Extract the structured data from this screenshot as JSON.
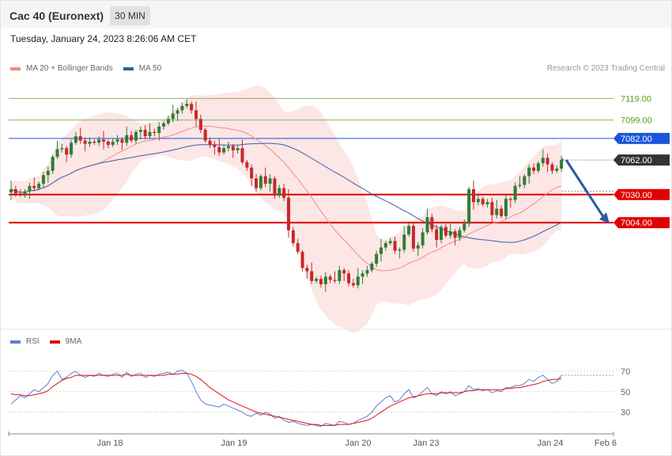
{
  "header": {
    "title": "Cac 40 (Euronext)",
    "interval": "30 MIN"
  },
  "datetime": "Tuesday, January 24, 2023 8:26:06 AM CET",
  "main_legend": [
    {
      "label": "MA 20 + Bollinger Bands",
      "color": "#f28b82"
    },
    {
      "label": "MA 50",
      "color": "#2f5f9f"
    }
  ],
  "rsi_legend": [
    {
      "label": "RSI",
      "color": "#5b7fd6"
    },
    {
      "label": "9MA",
      "color": "#e01010"
    }
  ],
  "copyright": "Research © 2023 Trading Central",
  "colors": {
    "up": "#2e7d32",
    "down": "#c62828",
    "band": "#fde2e2",
    "ma20": "#f28b82",
    "ma50": "#3a5fa8",
    "resistance": "#8db36a",
    "pivot": "#1a56db",
    "support": "#e00000",
    "current": "#333333",
    "arrow": "#2b5a9e"
  },
  "chart_data": [
    {
      "type": "candlestick",
      "ylim": [
        6925,
        7131
      ],
      "x_ticks": [
        "Jan 18",
        "Jan 19",
        "Jan 20",
        "Jan 23",
        "Jan 24",
        "Feb 6"
      ],
      "levels": [
        {
          "value": 7119.0,
          "label": "7119.00",
          "kind": "resistance"
        },
        {
          "value": 7099.0,
          "label": "7099.00",
          "kind": "resistance"
        },
        {
          "value": 7082.0,
          "label": "7082.00",
          "kind": "pivot"
        },
        {
          "value": 7062.0,
          "label": "7062.00",
          "kind": "current"
        },
        {
          "value": 7030.0,
          "label": "7030.00",
          "kind": "support"
        },
        {
          "value": 7004.0,
          "label": "7004.00",
          "kind": "support"
        }
      ],
      "forecast": {
        "from": 7062.0,
        "to": 7004.0
      },
      "closes": [
        7035,
        7031,
        7030,
        7033,
        7038,
        7036,
        7040,
        7048,
        7052,
        7065,
        7072,
        7073,
        7067,
        7078,
        7084,
        7080,
        7077,
        7079,
        7078,
        7081,
        7079,
        7076,
        7079,
        7081,
        7078,
        7085,
        7080,
        7088,
        7090,
        7084,
        7088,
        7087,
        7093,
        7096,
        7100,
        7105,
        7108,
        7112,
        7114,
        7108,
        7100,
        7090,
        7080,
        7076,
        7074,
        7069,
        7073,
        7075,
        7071,
        7073,
        7060,
        7055,
        7045,
        7036,
        7047,
        7040,
        7045,
        7029,
        7036,
        7027,
        6997,
        6985,
        6977,
        6962,
        6959,
        6950,
        6952,
        6947,
        6954,
        6951,
        6950,
        6960,
        6957,
        6948,
        6946,
        6954,
        6957,
        6960,
        6966,
        6975,
        6981,
        6985,
        6987,
        6978,
        6979,
        6993,
        7001,
        6980,
        6983,
        6995,
        7009,
        6998,
        6988,
        7000,
        6992,
        6996,
        6990,
        6997,
        7003,
        7035,
        7023,
        7026,
        7021,
        7023,
        7011,
        7017,
        7010,
        7026,
        7025,
        7038,
        7039,
        7047,
        7055,
        7052,
        7059,
        7064,
        7058,
        7052,
        7054,
        7062
      ]
    },
    {
      "type": "line",
      "title": "RSI",
      "ylim": [
        15,
        80
      ],
      "y_ticks": [
        70,
        50,
        30
      ],
      "series": [
        {
          "name": "RSI",
          "values": [
            38,
            42,
            46,
            44,
            48,
            52,
            50,
            54,
            58,
            66,
            70,
            62,
            64,
            68,
            70,
            66,
            64,
            66,
            65,
            68,
            66,
            65,
            67,
            68,
            64,
            69,
            65,
            67,
            68,
            64,
            66,
            65,
            67,
            68,
            69,
            67,
            70,
            71,
            68,
            60,
            50,
            42,
            38,
            37,
            36,
            35,
            38,
            36,
            34,
            32,
            30,
            27,
            26,
            29,
            27,
            30,
            28,
            24,
            26,
            22,
            20,
            21,
            19,
            18,
            17,
            18,
            17,
            16,
            19,
            18,
            17,
            21,
            20,
            18,
            19,
            22,
            24,
            26,
            30,
            36,
            40,
            44,
            46,
            40,
            42,
            48,
            52,
            44,
            46,
            50,
            54,
            48,
            46,
            50,
            48,
            50,
            46,
            48,
            50,
            56,
            52,
            53,
            51,
            52,
            49,
            51,
            50,
            54,
            54,
            56,
            56,
            58,
            62,
            60,
            64,
            66,
            62,
            58,
            60,
            66
          ]
        },
        {
          "name": "9MA",
          "values": [
            48,
            47,
            47,
            46,
            46,
            47,
            48,
            49,
            51,
            55,
            58,
            61,
            63,
            64,
            66,
            66,
            66,
            66,
            66,
            66,
            66,
            66,
            66,
            66,
            66,
            67,
            66,
            66,
            66,
            66,
            66,
            66,
            66,
            66,
            67,
            67,
            67,
            68,
            68,
            67,
            65,
            62,
            58,
            54,
            51,
            48,
            45,
            42,
            40,
            38,
            36,
            34,
            32,
            30,
            29,
            28,
            27,
            26,
            25,
            24,
            23,
            22,
            21,
            20,
            19,
            18,
            18,
            17,
            17,
            17,
            17,
            18,
            18,
            18,
            19,
            20,
            21,
            22,
            24,
            27,
            30,
            33,
            36,
            38,
            40,
            42,
            44,
            45,
            46,
            47,
            48,
            48,
            48,
            49,
            49,
            49,
            49,
            49,
            50,
            51,
            51,
            52,
            52,
            52,
            52,
            52,
            52,
            53,
            53,
            54,
            54,
            55,
            56,
            57,
            58,
            60,
            61,
            62,
            62,
            63
          ]
        }
      ]
    }
  ]
}
